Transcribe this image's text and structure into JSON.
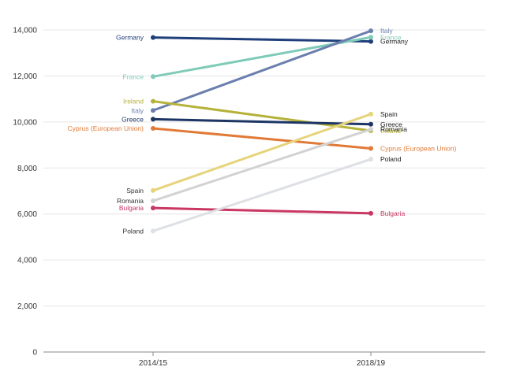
{
  "chart_data": {
    "type": "line",
    "title": "",
    "xlabel": "",
    "ylabel": "",
    "x": [
      "2014/15",
      "2018/19"
    ],
    "ylim": [
      0,
      14000
    ],
    "yticks": [
      0,
      2000,
      4000,
      6000,
      8000,
      10000,
      12000,
      14000
    ],
    "ytick_labels": [
      "0",
      "2,000",
      "4,000",
      "6,000",
      "8,000",
      "10,000",
      "12,000",
      "14,000"
    ],
    "grid": true,
    "series": [
      {
        "name": "Germany",
        "values": [
          13670,
          13500
        ],
        "color": "#1f3f7a"
      },
      {
        "name": "France",
        "values": [
          11970,
          13680
        ],
        "color": "#7fcab8"
      },
      {
        "name": "Italy",
        "values": [
          10500,
          13960
        ],
        "color": "#6b7fae"
      },
      {
        "name": "Ireland",
        "values": [
          10900,
          9620
        ],
        "color": "#b5b23a"
      },
      {
        "name": "Greece",
        "values": [
          10120,
          9900
        ],
        "color": "#1d3565"
      },
      {
        "name": "Cyprus (European Union)",
        "values": [
          9720,
          8850
        ],
        "color": "#e07a36"
      },
      {
        "name": "Spain",
        "values": [
          7020,
          10340
        ],
        "color": "#e6d47c"
      },
      {
        "name": "Romania",
        "values": [
          6570,
          9680
        ],
        "color": "#d2d2d2"
      },
      {
        "name": "Bulgaria",
        "values": [
          6260,
          6030
        ],
        "color": "#c93762"
      },
      {
        "name": "Poland",
        "values": [
          5260,
          8380
        ],
        "color": "#dde0e4"
      }
    ]
  }
}
